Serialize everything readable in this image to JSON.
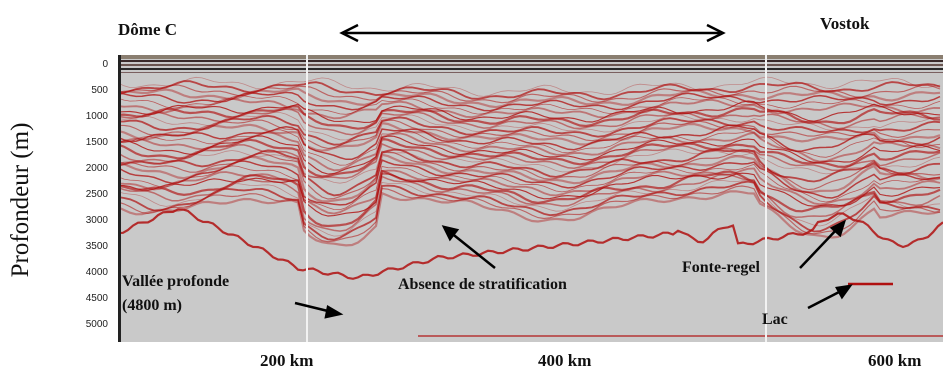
{
  "sites": {
    "left": "Dôme C",
    "right": "Vostok"
  },
  "y_axis": {
    "label": "Profondeur (m)",
    "ticks": [
      "0",
      "500",
      "1000",
      "1500",
      "2000",
      "2500",
      "3000",
      "3500",
      "4000",
      "4500",
      "5000"
    ]
  },
  "x_axis": {
    "ticks": [
      "200 km",
      "400 km",
      "600 km"
    ]
  },
  "annotations": {
    "valley_line1": "Vallée profonde",
    "valley_line2": "(4800 m)",
    "no_layering": "Absence de stratification",
    "freeze_melt": "Fonte-regel",
    "lake": "Lac"
  },
  "colors": {
    "background": "#c9c9c9",
    "layer_red": "#b01010",
    "surface": "#3a2a2a"
  }
}
